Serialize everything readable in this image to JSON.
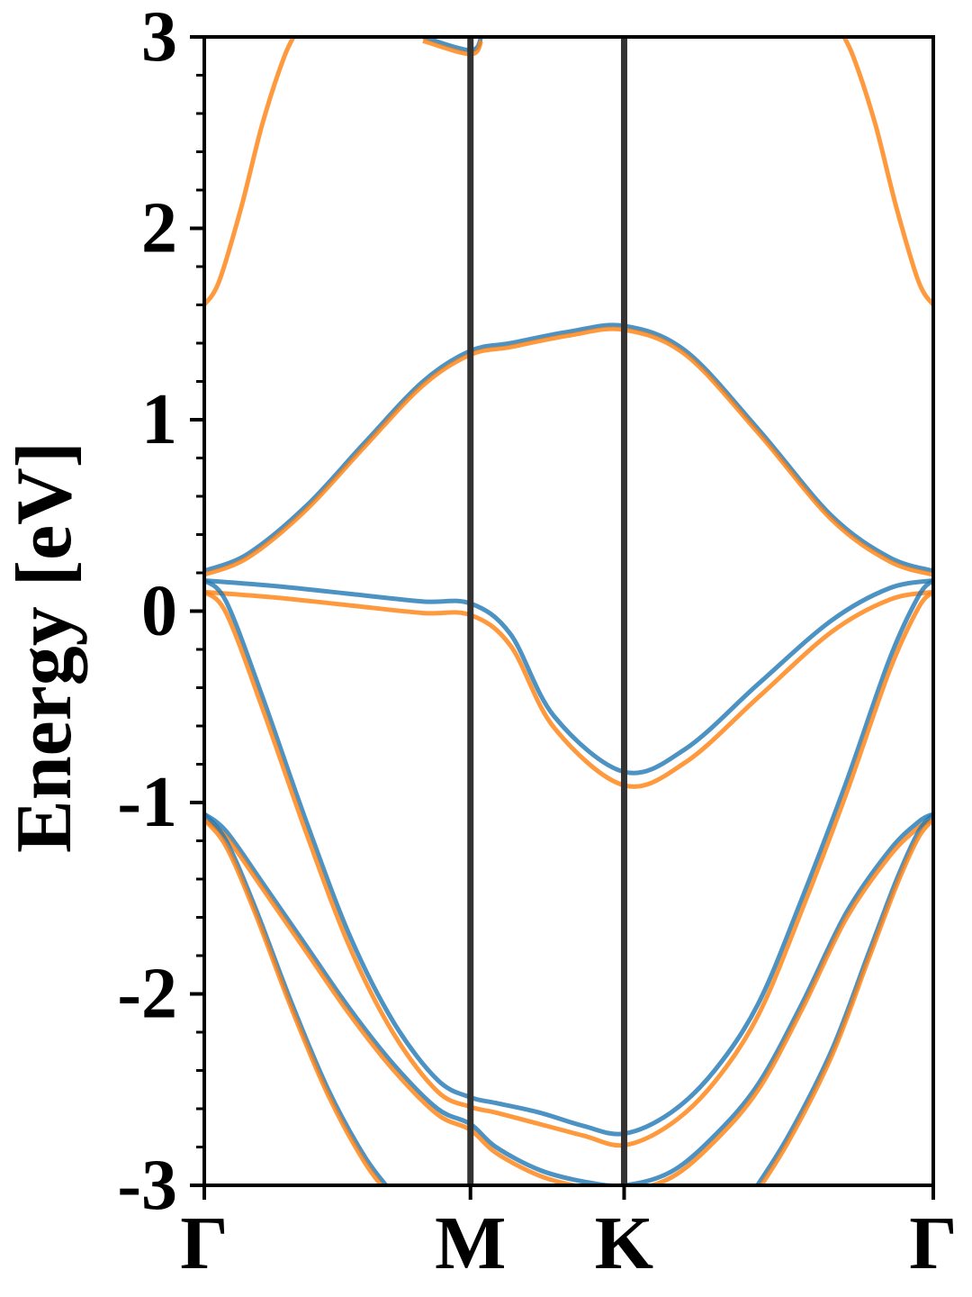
{
  "chart_data": {
    "type": "line",
    "title": "",
    "xlabel": "",
    "ylabel": "Energy [eV]",
    "ylim": [
      -3,
      3
    ],
    "y_ticks": [
      "-3",
      "-2",
      "-1",
      "0",
      "1",
      "2",
      "3"
    ],
    "y_tick_values": [
      -3,
      -2,
      -1,
      0,
      1,
      2,
      3
    ],
    "y_minor_step": 0.2,
    "kpath": {
      "labels": [
        "Γ",
        "M",
        "K",
        "Γ"
      ],
      "positions": [
        0.0,
        0.3651,
        0.5759,
        1.0
      ]
    },
    "grid": false,
    "legend": "none",
    "colors": {
      "series_a": "#1f77b4",
      "series_b": "#ff7f0e",
      "kline": "#333333"
    },
    "series": [
      {
        "color": "series_a",
        "x": [
          0,
          0.06,
          0.14,
          0.22,
          0.3,
          0.3651,
          0.42,
          0.5,
          0.5759,
          0.66,
          0.76,
          0.86,
          0.94,
          1.0
        ],
        "y": [
          0.21,
          0.3,
          0.55,
          0.88,
          1.2,
          1.36,
          1.4,
          1.46,
          1.49,
          1.36,
          0.95,
          0.5,
          0.28,
          0.21
        ]
      },
      {
        "color": "series_b",
        "x": [
          0,
          0.06,
          0.14,
          0.22,
          0.3,
          0.3651,
          0.42,
          0.5,
          0.5759,
          0.66,
          0.76,
          0.86,
          0.94,
          1.0
        ],
        "y": [
          0.19,
          0.28,
          0.53,
          0.86,
          1.18,
          1.34,
          1.38,
          1.44,
          1.47,
          1.34,
          0.93,
          0.48,
          0.26,
          0.19
        ]
      },
      {
        "color": "series_a",
        "x": [
          0,
          0.1,
          0.2,
          0.3,
          0.3651,
          0.42,
          0.48,
          0.5759,
          0.66,
          0.76,
          0.86,
          0.94,
          1.0
        ],
        "y": [
          0.16,
          0.13,
          0.09,
          0.05,
          0.04,
          -0.12,
          -0.55,
          -0.84,
          -0.72,
          -0.38,
          -0.05,
          0.12,
          0.16
        ]
      },
      {
        "color": "series_b",
        "x": [
          0,
          0.1,
          0.2,
          0.3,
          0.3651,
          0.42,
          0.48,
          0.5759,
          0.66,
          0.76,
          0.86,
          0.94,
          1.0
        ],
        "y": [
          0.1,
          0.07,
          0.03,
          -0.01,
          -0.02,
          -0.18,
          -0.61,
          -0.91,
          -0.79,
          -0.45,
          -0.11,
          0.06,
          0.1
        ]
      },
      {
        "color": "series_a",
        "x": [
          0,
          0.03,
          0.08,
          0.14,
          0.2,
          0.26,
          0.32,
          0.3651,
          0.4,
          0.46,
          0.52,
          0.5759,
          0.64,
          0.7,
          0.76,
          0.82,
          0.88,
          0.94,
          0.98,
          1.0
        ],
        "y": [
          0.16,
          0.05,
          -0.45,
          -1.1,
          -1.7,
          -2.15,
          -2.45,
          -2.54,
          -2.57,
          -2.62,
          -2.69,
          -2.73,
          -2.62,
          -2.4,
          -2.05,
          -1.5,
          -0.9,
          -0.25,
          0.08,
          0.16
        ]
      },
      {
        "color": "series_b",
        "x": [
          0,
          0.03,
          0.08,
          0.14,
          0.2,
          0.26,
          0.32,
          0.3651,
          0.4,
          0.46,
          0.52,
          0.5759,
          0.64,
          0.7,
          0.76,
          0.82,
          0.88,
          0.94,
          0.98,
          1.0
        ],
        "y": [
          0.1,
          -0.01,
          -0.51,
          -1.16,
          -1.76,
          -2.21,
          -2.51,
          -2.59,
          -2.62,
          -2.68,
          -2.74,
          -2.79,
          -2.68,
          -2.46,
          -2.11,
          -1.56,
          -0.96,
          -0.31,
          0.02,
          0.1
        ]
      },
      {
        "color": "series_a",
        "x": [
          0,
          0.03,
          0.08,
          0.14,
          0.2,
          0.26,
          0.32,
          0.3651,
          0.4,
          0.46,
          0.52,
          0.5759,
          0.64,
          0.7,
          0.76,
          0.82,
          0.88,
          0.94,
          0.98,
          1.0
        ],
        "y": [
          -1.06,
          -1.15,
          -1.42,
          -1.75,
          -2.08,
          -2.37,
          -2.6,
          -2.68,
          -2.8,
          -2.92,
          -2.98,
          -3.0,
          -2.93,
          -2.74,
          -2.47,
          -2.05,
          -1.58,
          -1.25,
          -1.1,
          -1.06
        ]
      },
      {
        "color": "series_b",
        "x": [
          0,
          0.03,
          0.08,
          0.14,
          0.2,
          0.26,
          0.32,
          0.3651,
          0.4,
          0.46,
          0.52,
          0.5759,
          0.64,
          0.7,
          0.76,
          0.82,
          0.88,
          0.94,
          0.98,
          1.0
        ],
        "y": [
          -1.09,
          -1.18,
          -1.45,
          -1.78,
          -2.11,
          -2.4,
          -2.63,
          -2.71,
          -2.83,
          -2.95,
          -3.01,
          -3.03,
          -2.96,
          -2.77,
          -2.5,
          -2.08,
          -1.61,
          -1.28,
          -1.13,
          -1.09
        ]
      },
      {
        "color": "series_a",
        "x": [
          0,
          0.03,
          0.07,
          0.12,
          0.17,
          0.22,
          0.26
        ],
        "y": [
          -1.06,
          -1.2,
          -1.55,
          -2.05,
          -2.5,
          -2.85,
          -3.05
        ]
      },
      {
        "color": "series_b",
        "x": [
          0,
          0.03,
          0.07,
          0.12,
          0.17,
          0.22,
          0.26
        ],
        "y": [
          -1.09,
          -1.23,
          -1.58,
          -2.08,
          -2.53,
          -2.88,
          -3.08
        ]
      },
      {
        "color": "series_a",
        "x": [
          0.75,
          0.8,
          0.86,
          0.91,
          0.95,
          0.98,
          1.0
        ],
        "y": [
          -3.05,
          -2.75,
          -2.3,
          -1.8,
          -1.4,
          -1.15,
          -1.06
        ]
      },
      {
        "color": "series_b",
        "x": [
          0.75,
          0.8,
          0.86,
          0.91,
          0.95,
          0.98,
          1.0
        ],
        "y": [
          -3.08,
          -2.78,
          -2.33,
          -1.83,
          -1.43,
          -1.18,
          -1.09
        ]
      },
      {
        "color": "series_b",
        "x": [
          0,
          0.02,
          0.05,
          0.08,
          0.11,
          0.13
        ],
        "y": [
          1.6,
          1.72,
          2.1,
          2.55,
          2.9,
          3.05
        ]
      },
      {
        "color": "series_b",
        "x": [
          0.87,
          0.89,
          0.92,
          0.95,
          0.98,
          1.0
        ],
        "y": [
          3.05,
          2.9,
          2.55,
          2.1,
          1.72,
          1.6
        ]
      },
      {
        "color": "series_a",
        "x": [
          0.3,
          0.3651,
          0.38
        ],
        "y": [
          3.0,
          2.93,
          3.0
        ]
      },
      {
        "color": "series_b",
        "x": [
          0.3,
          0.3651,
          0.38
        ],
        "y": [
          2.98,
          2.91,
          2.98
        ]
      }
    ]
  }
}
